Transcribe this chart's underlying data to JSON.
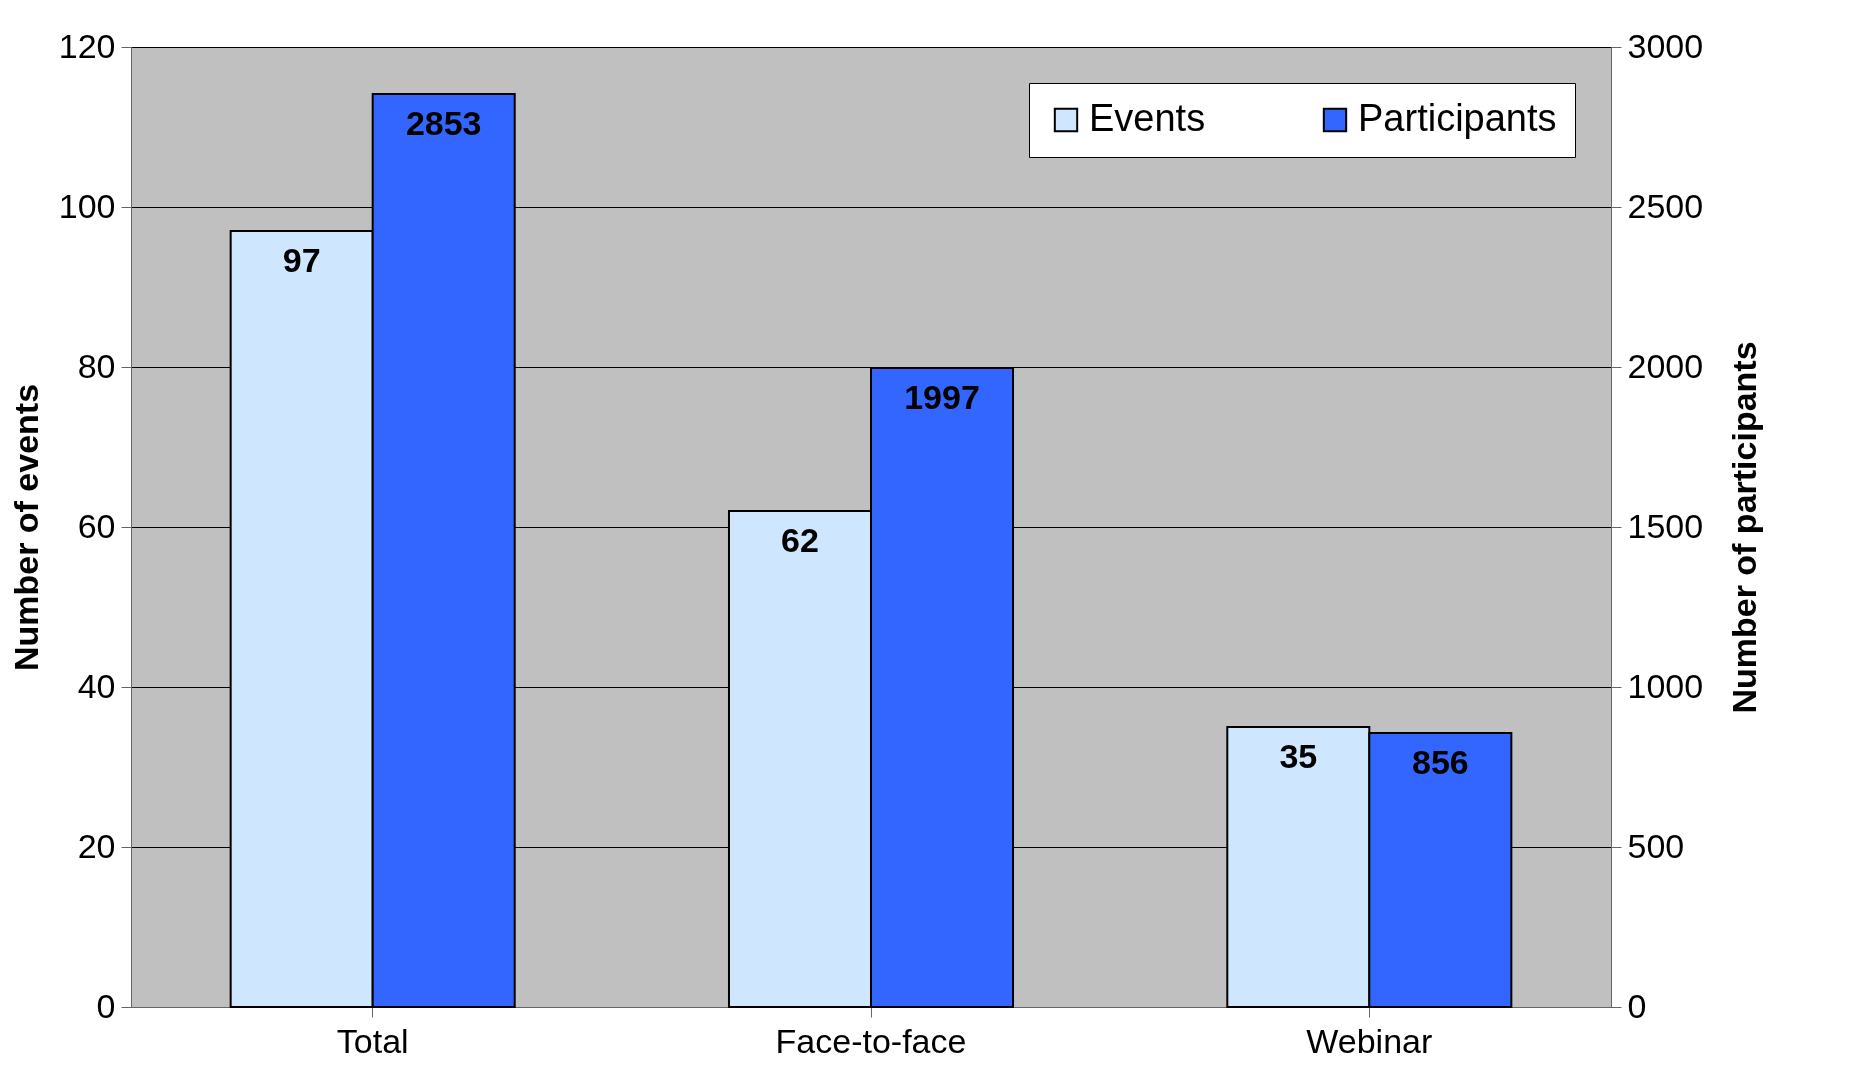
{
  "chart_data": {
    "type": "bar",
    "categories": [
      "Total",
      "Face-to-face",
      "Webinar"
    ],
    "series": [
      {
        "name": "Events",
        "color": "#cfe6ff",
        "values": [
          97,
          62,
          35
        ]
      },
      {
        "name": "Participants",
        "color": "#3366ff",
        "values": [
          2853,
          1997,
          856
        ],
        "axis": "y2"
      }
    ],
    "ylabel": "Number of events",
    "y2label": "Number of participants",
    "ylim": [
      0,
      120
    ],
    "yticks": [
      0,
      20,
      40,
      60,
      80,
      100,
      120
    ],
    "y2lim": [
      0,
      3000
    ],
    "y2ticks": [
      0,
      500,
      1000,
      1500,
      2000,
      2500,
      3000
    ],
    "grid": "y",
    "legend": "top right",
    "data_labels": true
  }
}
